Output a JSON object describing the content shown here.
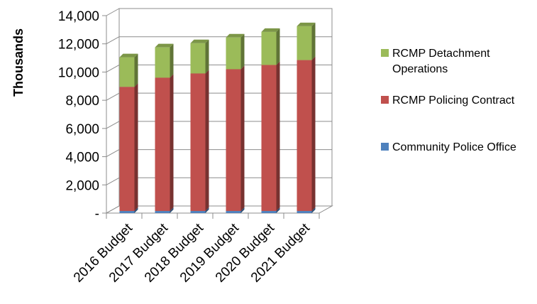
{
  "chart_data": {
    "type": "bar",
    "stacked": true,
    "three_d": true,
    "title": "",
    "xlabel": "",
    "ylabel": "Thousands",
    "ylim": [
      0,
      14000
    ],
    "yticks": [
      {
        "value": 0,
        "label": "-"
      },
      {
        "value": 2000,
        "label": "2,000"
      },
      {
        "value": 4000,
        "label": "4,000"
      },
      {
        "value": 6000,
        "label": "6,000"
      },
      {
        "value": 8000,
        "label": "8,000"
      },
      {
        "value": 10000,
        "label": "10,000"
      },
      {
        "value": 12000,
        "label": "12,000"
      },
      {
        "value": 14000,
        "label": "14,000"
      }
    ],
    "categories": [
      "2016 Budget",
      "2017 Budget",
      "2018 Budget",
      "2019 Budget",
      "2020 Budget",
      "2021 Budget"
    ],
    "series": [
      {
        "name": "Community Police Office",
        "color": "#4F81BD",
        "values": [
          150,
          150,
          150,
          150,
          150,
          150
        ]
      },
      {
        "name": "RCMP Policing Contract",
        "color": "#C0504D",
        "values": [
          8800,
          9450,
          9750,
          10050,
          10350,
          10700
        ]
      },
      {
        "name": "RCMP Detachment Operations",
        "color": "#9BBB59",
        "values": [
          2100,
          2150,
          2150,
          2250,
          2350,
          2400
        ]
      }
    ],
    "legend_entries": [
      {
        "lines": [
          "RCMP Detachment",
          "Operations"
        ],
        "color": "#9BBB59"
      },
      {
        "lines": [
          "RCMP Policing Contract"
        ],
        "color": "#C0504D"
      },
      {
        "lines": [
          "Community Police Office"
        ],
        "color": "#4F81BD"
      }
    ],
    "legend_position": "right",
    "grid": true
  }
}
